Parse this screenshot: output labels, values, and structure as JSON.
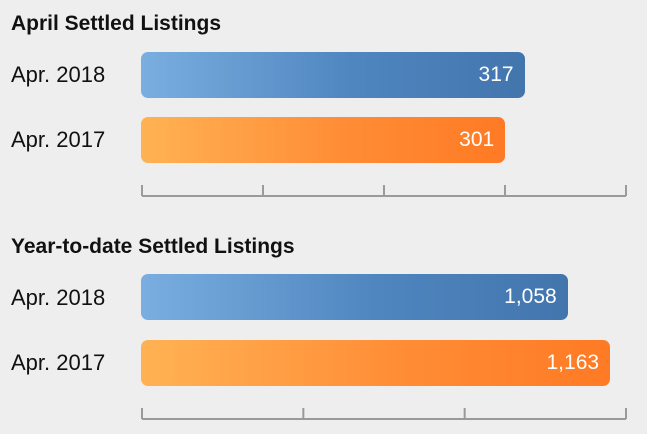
{
  "chart_data": [
    {
      "type": "bar",
      "orientation": "horizontal",
      "title": "April Settled Listings",
      "categories": [
        "Apr. 2018",
        "Apr. 2017"
      ],
      "values": [
        317,
        301
      ],
      "value_labels": [
        "317",
        "301"
      ],
      "xlim": [
        0,
        400
      ],
      "tick_values": [
        0,
        100,
        200,
        300,
        400
      ],
      "colors": [
        "#4f86bf",
        "#ff8d36"
      ],
      "grid": false,
      "legend": "none"
    },
    {
      "type": "bar",
      "orientation": "horizontal",
      "title": "Year-to-date Settled Listings",
      "categories": [
        "Apr. 2018",
        "Apr. 2017"
      ],
      "values": [
        1058,
        1163
      ],
      "value_labels": [
        "1,058",
        "1,163"
      ],
      "xlim": [
        0,
        1200
      ],
      "tick_values": [
        0,
        400,
        800,
        1200
      ],
      "colors": [
        "#4f86bf",
        "#ff8d36"
      ],
      "grid": false,
      "legend": "none"
    }
  ]
}
